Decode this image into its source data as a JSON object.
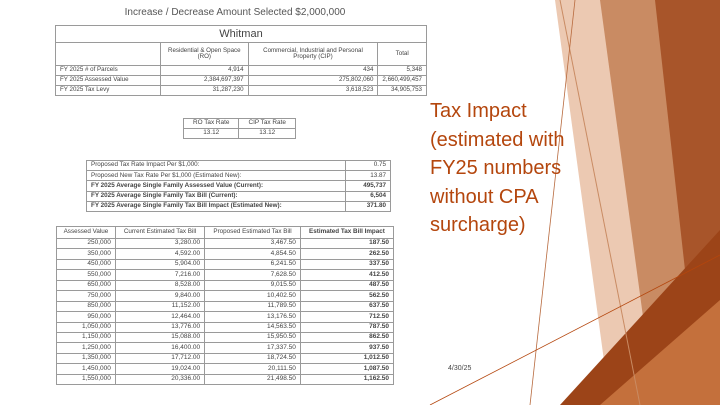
{
  "header": {
    "scenario": "Increase / Decrease Amount Selected  $2,000,000"
  },
  "town_table": {
    "town": "Whitman",
    "columns": [
      "Residential & Open Space (RO)",
      "Commercial, Industrial and Personal Property (CIP)",
      "Total"
    ],
    "rows": [
      {
        "label": "FY 2025 # of Parcels",
        "values": [
          "4,914",
          "434",
          "5,348"
        ]
      },
      {
        "label": "FY 2025 Assessed Value",
        "values": [
          "2,384,697,397",
          "275,802,060",
          "2,660,499,457"
        ]
      },
      {
        "label": "FY 2025 Tax Levy",
        "values": [
          "31,287,230",
          "3,618,523",
          "34,905,753"
        ]
      }
    ]
  },
  "rate_table": {
    "headers": [
      "RO Tax Rate",
      "CIP Tax Rate"
    ],
    "values": [
      "13.12",
      "13.12"
    ]
  },
  "summary_table": {
    "rows": [
      {
        "label": "Proposed Tax Rate Impact Per $1,000:",
        "value": "0.75",
        "bold": false
      },
      {
        "label": "Proposed New Tax Rate Per $1,000 (Estimated New):",
        "value": "13.87",
        "bold": false
      },
      {
        "label": "FY 2025 Average Single Family Assessed Value (Current):",
        "value": "495,737",
        "bold": true
      },
      {
        "label": "FY 2025 Average Single Family Tax Bill (Current):",
        "value": "6,504",
        "bold": true
      },
      {
        "label": "FY 2025 Average Single Family Tax Bill Impact (Estimated New):",
        "value": "371.80",
        "bold": true
      }
    ]
  },
  "bill_table": {
    "headers": [
      "Assessed Value",
      "Current Estimated Tax Bill",
      "Proposed Estimated Tax Bill",
      "Estimated Tax Bill Impact"
    ],
    "rows": [
      [
        "250,000",
        "3,280.00",
        "3,467.50",
        "187.50"
      ],
      [
        "350,000",
        "4,592.00",
        "4,854.50",
        "262.50"
      ],
      [
        "450,000",
        "5,904.00",
        "6,241.50",
        "337.50"
      ],
      [
        "550,000",
        "7,216.00",
        "7,628.50",
        "412.50"
      ],
      [
        "650,000",
        "8,528.00",
        "9,015.50",
        "487.50"
      ],
      [
        "750,000",
        "9,840.00",
        "10,402.50",
        "562.50"
      ],
      [
        "850,000",
        "11,152.00",
        "11,789.50",
        "637.50"
      ],
      [
        "950,000",
        "12,464.00",
        "13,176.50",
        "712.50"
      ],
      [
        "1,050,000",
        "13,776.00",
        "14,563.50",
        "787.50"
      ],
      [
        "1,150,000",
        "15,088.00",
        "15,950.50",
        "862.50"
      ],
      [
        "1,250,000",
        "16,400.00",
        "17,337.50",
        "937.50"
      ],
      [
        "1,350,000",
        "17,712.00",
        "18,724.50",
        "1,012.50"
      ],
      [
        "1,450,000",
        "19,024.00",
        "20,111.50",
        "1,087.50"
      ],
      [
        "1,550,000",
        "20,336.00",
        "21,498.50",
        "1,162.50"
      ]
    ]
  },
  "slide": {
    "title": "Tax Impact\n(estimated with\nFY25 numbers\nwithout CPA\nsurcharge)",
    "date": "4/30/25"
  },
  "colors": {
    "accent": "#b4460d",
    "wedge_dark": "#8a3510",
    "wedge_mid": "#b86a3e",
    "wedge_light": "#d7a888"
  }
}
